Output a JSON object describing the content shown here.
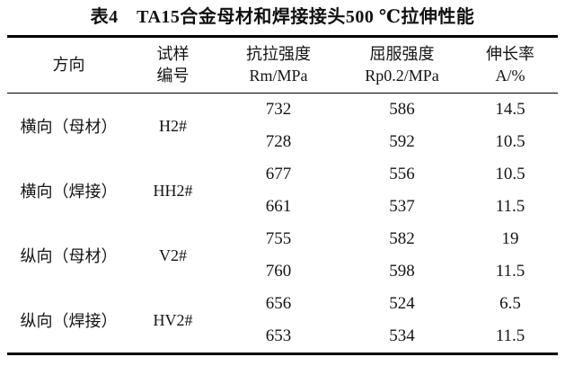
{
  "colors": {
    "background": "#ffffff",
    "text": "#141414",
    "rule": "#000000"
  },
  "table": {
    "title": "表4　TA15合金母材和焊接接头500 ℃拉伸性能",
    "columns": [
      {
        "line1": "方向",
        "line2": ""
      },
      {
        "line1": "试样",
        "line2": "编号"
      },
      {
        "line1": "抗拉强度",
        "line2": "Rm/MPa"
      },
      {
        "line1": "屈服强度",
        "line2": "Rp0.2/MPa"
      },
      {
        "line1": "伸长率",
        "line2": "A/%"
      }
    ],
    "groups": [
      {
        "direction": "横向（母材）",
        "specimen": "H2#",
        "rows": [
          {
            "rm": "732",
            "rp": "586",
            "a": "14.5"
          },
          {
            "rm": "728",
            "rp": "592",
            "a": "10.5"
          }
        ]
      },
      {
        "direction": "横向（焊接）",
        "specimen": "HH2#",
        "rows": [
          {
            "rm": "677",
            "rp": "556",
            "a": "10.5"
          },
          {
            "rm": "661",
            "rp": "537",
            "a": "11.5"
          }
        ]
      },
      {
        "direction": "纵向（母材）",
        "specimen": "V2#",
        "rows": [
          {
            "rm": "755",
            "rp": "582",
            "a": "19"
          },
          {
            "rm": "760",
            "rp": "598",
            "a": "11.5"
          }
        ]
      },
      {
        "direction": "纵向（焊接）",
        "specimen": "HV2#",
        "rows": [
          {
            "rm": "656",
            "rp": "524",
            "a": "6.5"
          },
          {
            "rm": "653",
            "rp": "534",
            "a": "11.5"
          }
        ]
      }
    ]
  }
}
